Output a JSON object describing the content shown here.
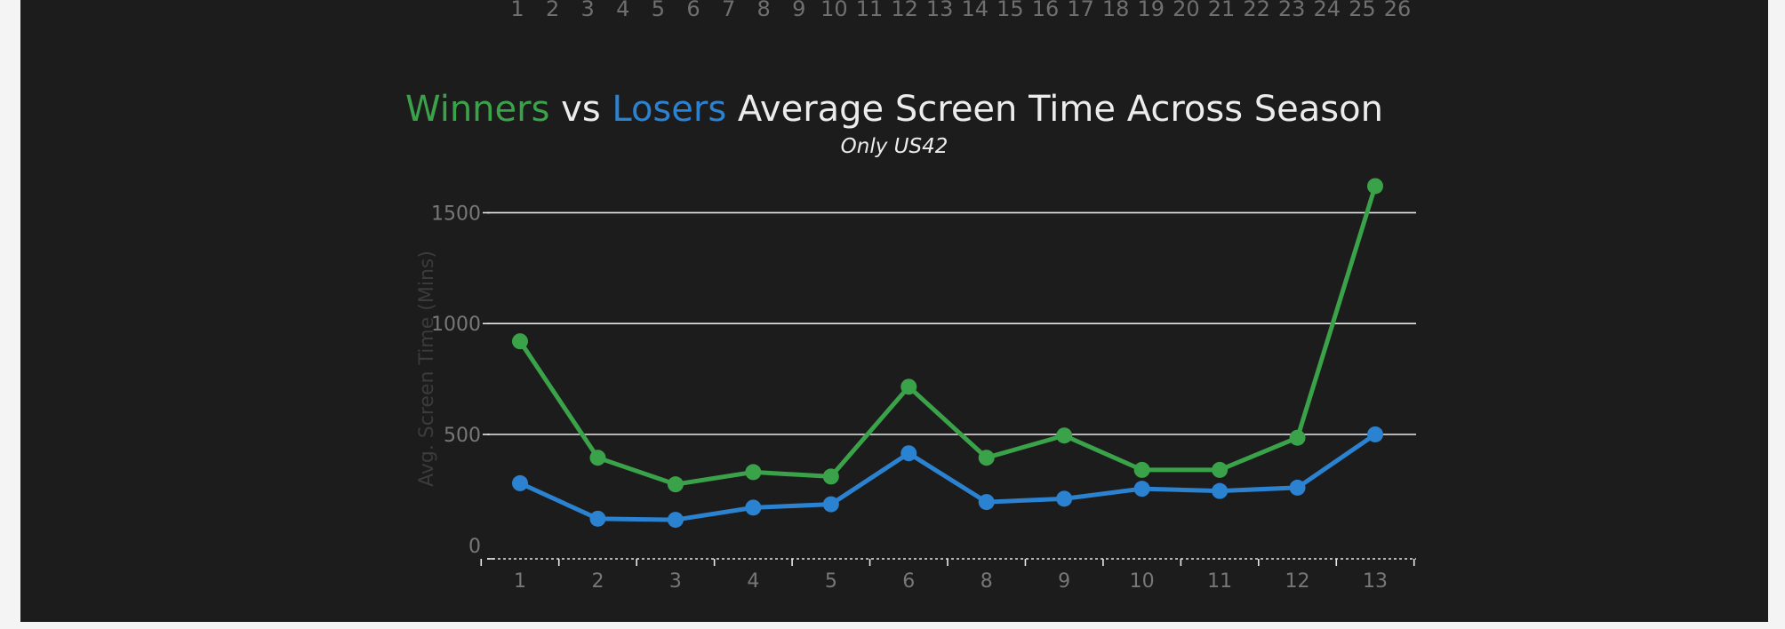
{
  "top_axis": {
    "ticks": [
      "1",
      "2",
      "3",
      "4",
      "5",
      "6",
      "7",
      "8",
      "9",
      "10",
      "11",
      "12",
      "13",
      "14",
      "15",
      "16",
      "17",
      "18",
      "19",
      "20",
      "21",
      "22",
      "23",
      "24",
      "25",
      "26"
    ]
  },
  "chart_data": {
    "type": "line",
    "title_parts": {
      "winners": "Winners",
      "vs": "vs",
      "losers": "Losers",
      "rest": "Average Screen Time Across Season"
    },
    "subtitle": "Only US42",
    "ylabel": "Avg. Screen Time (Mins)",
    "xlabel": "",
    "categories": [
      "1",
      "2",
      "3",
      "4",
      "5",
      "6",
      "8",
      "9",
      "10",
      "11",
      "12",
      "13"
    ],
    "ylim": [
      -45,
      1630
    ],
    "yticks": [
      0,
      500,
      1000,
      1500
    ],
    "grid": true,
    "series": [
      {
        "name": "Winners",
        "color": "#3aa34a",
        "values": [
          920,
          395,
          275,
          330,
          310,
          715,
          395,
          495,
          340,
          340,
          485,
          1620
        ]
      },
      {
        "name": "Losers",
        "color": "#2a82d1",
        "values": [
          280,
          120,
          115,
          170,
          185,
          415,
          195,
          210,
          255,
          245,
          260,
          500
        ]
      }
    ]
  }
}
